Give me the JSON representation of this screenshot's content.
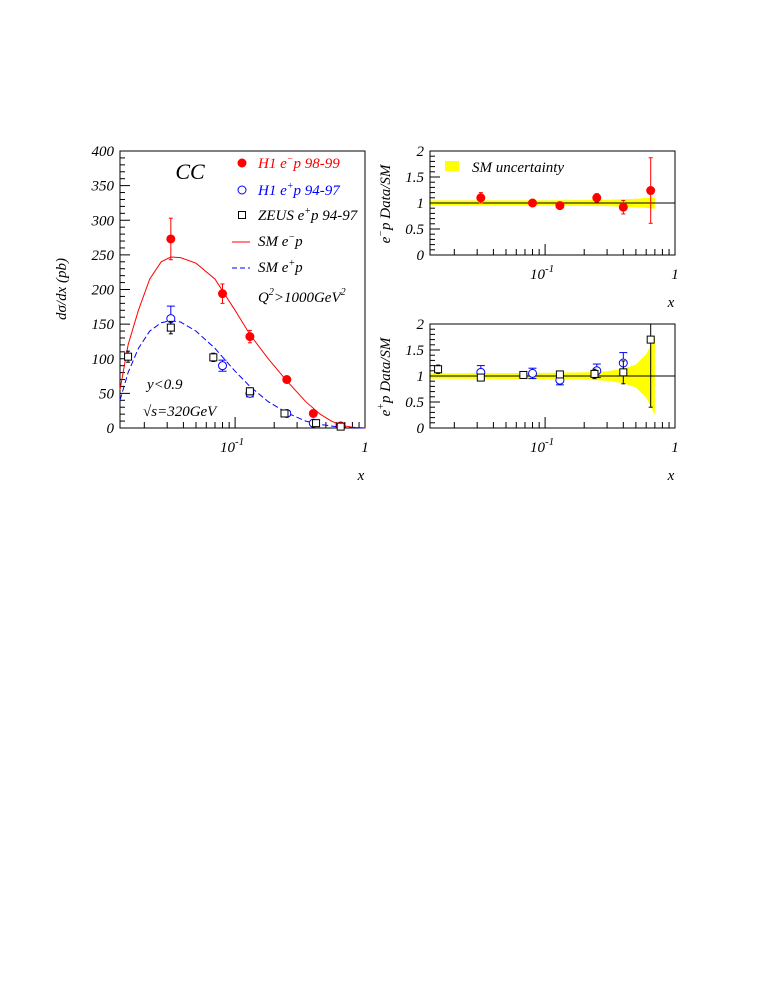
{
  "chart_data": [
    {
      "type": "scatter",
      "panel": "main",
      "title": "CC",
      "ylabel": "dσ/dx (pb)",
      "xlabel": "x",
      "x_scale": "log",
      "xlim": [
        0.013,
        1.0
      ],
      "ylim": [
        0,
        400
      ],
      "y_ticks": [
        0,
        50,
        100,
        150,
        200,
        250,
        300,
        350,
        400
      ],
      "y_tick_labels": [
        "0",
        "50",
        "100",
        "150",
        "200",
        "250",
        "300",
        "350",
        "400"
      ],
      "x_tick_labels": [
        {
          "value": 0.1,
          "base": "10",
          "exp": "-1"
        },
        {
          "value": 1.0,
          "base": "1",
          "exp": ""
        }
      ],
      "annotations": {
        "q2": {
          "text": "Q",
          "sup1": "2",
          "rest": ">1000GeV",
          "sup2": "2"
        },
        "ycut": "y<0.9",
        "sqrts": "√s=320GeV"
      },
      "legend": {
        "placement": "top-right",
        "entries": [
          {
            "key": "h1_em",
            "marker": "filled-circle",
            "color": "#ff0000",
            "pre": "H1 e",
            "sup": "−",
            "post": "p 98-99"
          },
          {
            "key": "h1_ep",
            "marker": "open-circle",
            "color": "#0000ff",
            "pre": "H1 e",
            "sup": "+",
            "post": "p 94-97"
          },
          {
            "key": "zeus_ep",
            "marker": "open-square",
            "color": "#000000",
            "pre": "ZEUS e",
            "sup": "+",
            "post": "p 94-97"
          },
          {
            "key": "sm_em",
            "marker": "solid-line",
            "color": "#ff0000",
            "pre": "SM e",
            "sup": "−",
            "post": "p"
          },
          {
            "key": "sm_ep",
            "marker": "dashed-line",
            "color": "#0000ff",
            "pre": "SM e",
            "sup": "+",
            "post": "p"
          }
        ]
      },
      "series": [
        {
          "key": "h1_em",
          "style": "filled-circle",
          "color": "#ff0000",
          "points": [
            {
              "x": 0.032,
              "y": 273,
              "err": 30
            },
            {
              "x": 0.08,
              "y": 194,
              "err": 14
            },
            {
              "x": 0.13,
              "y": 132,
              "err": 9
            },
            {
              "x": 0.25,
              "y": 70,
              "err": 5
            },
            {
              "x": 0.4,
              "y": 21,
              "err": 3
            },
            {
              "x": 0.65,
              "y": 3,
              "err": 2
            }
          ]
        },
        {
          "key": "h1_ep",
          "style": "open-circle",
          "color": "#0000ff",
          "points": [
            {
              "x": 0.032,
              "y": 158,
              "err": 18
            },
            {
              "x": 0.08,
              "y": 90,
              "err": 8
            },
            {
              "x": 0.13,
              "y": 50,
              "err": 5
            },
            {
              "x": 0.25,
              "y": 21,
              "err": 3
            },
            {
              "x": 0.4,
              "y": 7,
              "err": 2
            }
          ]
        },
        {
          "key": "zeus_ep",
          "style": "open-square",
          "color": "#000000",
          "points": [
            {
              "x": 0.015,
              "y": 103,
              "err": 8
            },
            {
              "x": 0.032,
              "y": 145,
              "err": 9
            },
            {
              "x": 0.068,
              "y": 102,
              "err": 6
            },
            {
              "x": 0.13,
              "y": 53,
              "err": 5
            },
            {
              "x": 0.24,
              "y": 21,
              "err": 3
            },
            {
              "x": 0.42,
              "y": 7,
              "err": 2
            },
            {
              "x": 0.65,
              "y": 2,
              "err": 1
            }
          ]
        },
        {
          "key": "sm_em",
          "style": "solid-line",
          "color": "#ff0000",
          "curve": [
            [
              0.013,
              55
            ],
            [
              0.015,
              120
            ],
            [
              0.018,
              170
            ],
            [
              0.022,
              215
            ],
            [
              0.027,
              240
            ],
            [
              0.032,
              247
            ],
            [
              0.038,
              246
            ],
            [
              0.05,
              238
            ],
            [
              0.07,
              215
            ],
            [
              0.1,
              170
            ],
            [
              0.13,
              135
            ],
            [
              0.18,
              100
            ],
            [
              0.25,
              68
            ],
            [
              0.35,
              38
            ],
            [
              0.45,
              20
            ],
            [
              0.55,
              10
            ],
            [
              0.65,
              4
            ],
            [
              0.8,
              1
            ],
            [
              1.0,
              0
            ]
          ]
        },
        {
          "key": "sm_ep",
          "style": "dashed-line",
          "color": "#0000ff",
          "curve": [
            [
              0.013,
              40
            ],
            [
              0.015,
              80
            ],
            [
              0.018,
              115
            ],
            [
              0.022,
              140
            ],
            [
              0.027,
              152
            ],
            [
              0.032,
              155
            ],
            [
              0.038,
              153
            ],
            [
              0.05,
              140
            ],
            [
              0.07,
              115
            ],
            [
              0.1,
              82
            ],
            [
              0.13,
              60
            ],
            [
              0.18,
              38
            ],
            [
              0.25,
              22
            ],
            [
              0.35,
              10
            ],
            [
              0.45,
              5
            ],
            [
              0.6,
              2
            ],
            [
              0.8,
              0.5
            ],
            [
              1.0,
              0
            ]
          ]
        }
      ]
    },
    {
      "type": "scatter",
      "panel": "ratio_em",
      "ylabel": {
        "pre": "e",
        "sup": "−",
        "post": "p Data/SM"
      },
      "xlabel": "x",
      "x_scale": "log",
      "xlim": [
        0.013,
        1.0
      ],
      "ylim": [
        0,
        2
      ],
      "y_ticks": [
        0,
        0.5,
        1,
        1.5,
        2
      ],
      "y_tick_labels": [
        "0",
        "0.5",
        "1",
        "1.5",
        "2"
      ],
      "x_tick_labels": [
        {
          "value": 0.1,
          "base": "10",
          "exp": "-1"
        },
        {
          "value": 1.0,
          "base": "1",
          "exp": ""
        }
      ],
      "legend": {
        "placement": "top-left",
        "entries": [
          {
            "marker": "yellow-band",
            "color": "#ffff00",
            "label": "SM uncertainty"
          }
        ]
      },
      "band": [
        [
          0.013,
          0.05
        ],
        [
          0.1,
          0.05
        ],
        [
          0.3,
          0.06
        ],
        [
          0.5,
          0.08
        ],
        [
          0.65,
          0.1
        ],
        [
          0.7,
          0.11
        ]
      ],
      "series": [
        {
          "key": "h1_em",
          "style": "filled-circle",
          "color": "#ff0000",
          "points": [
            {
              "x": 0.032,
              "y": 1.1,
              "err": 0.1
            },
            {
              "x": 0.08,
              "y": 1.0,
              "err": 0.06
            },
            {
              "x": 0.13,
              "y": 0.95,
              "err": 0.07
            },
            {
              "x": 0.25,
              "y": 1.1,
              "err": 0.08
            },
            {
              "x": 0.4,
              "y": 0.92,
              "err": 0.13
            },
            {
              "x": 0.65,
              "y": 1.24,
              "err": 0.63
            }
          ]
        }
      ]
    },
    {
      "type": "scatter",
      "panel": "ratio_ep",
      "ylabel": {
        "pre": "e",
        "sup": "+",
        "post": "p Data/SM"
      },
      "xlabel": "x",
      "x_scale": "log",
      "xlim": [
        0.013,
        1.0
      ],
      "ylim": [
        0,
        2
      ],
      "y_ticks": [
        0,
        0.5,
        1,
        1.5,
        2
      ],
      "y_tick_labels": [
        "0",
        "0.5",
        "1",
        "1.5",
        "2"
      ],
      "x_tick_labels": [
        {
          "value": 0.1,
          "base": "10",
          "exp": "-1"
        },
        {
          "value": 1.0,
          "base": "1",
          "exp": ""
        }
      ],
      "band": [
        [
          0.013,
          0.05
        ],
        [
          0.1,
          0.06
        ],
        [
          0.2,
          0.07
        ],
        [
          0.3,
          0.09
        ],
        [
          0.4,
          0.14
        ],
        [
          0.5,
          0.22
        ],
        [
          0.6,
          0.42
        ],
        [
          0.66,
          0.62
        ],
        [
          0.7,
          0.75
        ]
      ],
      "series": [
        {
          "key": "h1_ep",
          "style": "open-circle",
          "color": "#0000ff",
          "points": [
            {
              "x": 0.032,
              "y": 1.07,
              "err": 0.13
            },
            {
              "x": 0.08,
              "y": 1.05,
              "err": 0.1
            },
            {
              "x": 0.13,
              "y": 0.92,
              "err": 0.09
            },
            {
              "x": 0.25,
              "y": 1.1,
              "err": 0.13
            },
            {
              "x": 0.4,
              "y": 1.25,
              "err": 0.2
            }
          ]
        },
        {
          "key": "zeus_ep",
          "style": "open-square",
          "color": "#000000",
          "points": [
            {
              "x": 0.015,
              "y": 1.13,
              "err": 0.08
            },
            {
              "x": 0.032,
              "y": 0.97,
              "err": 0.06
            },
            {
              "x": 0.068,
              "y": 1.02,
              "err": 0.05
            },
            {
              "x": 0.13,
              "y": 1.03,
              "err": 0.06
            },
            {
              "x": 0.24,
              "y": 1.04,
              "err": 0.09
            },
            {
              "x": 0.4,
              "y": 1.07,
              "err": 0.22
            },
            {
              "x": 0.65,
              "y": 1.7,
              "err": 1.3
            }
          ]
        }
      ]
    }
  ]
}
